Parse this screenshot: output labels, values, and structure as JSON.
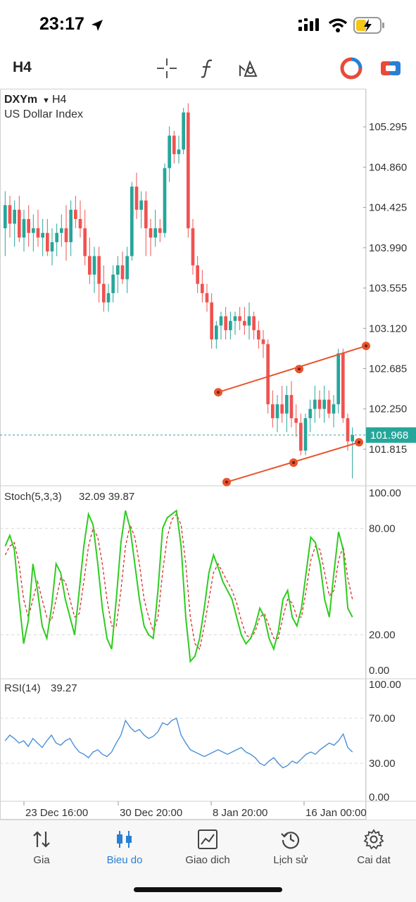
{
  "status_bar": {
    "time": "23:17"
  },
  "toolbar": {
    "timeframe": "H4"
  },
  "chart": {
    "symbol": "DXYm",
    "timeframe": "H4",
    "description": "US Dollar Index",
    "current_price": "101.968",
    "price_labels": [
      "105.295",
      "104.860",
      "104.425",
      "103.990",
      "103.555",
      "103.120",
      "102.685",
      "102.250",
      "101.815"
    ],
    "time_labels": [
      "23 Dec 16:00",
      "30 Dec 20:00",
      "8 Jan 20:00",
      "16 Jan 00:00"
    ],
    "colors": {
      "up": "#26a69a",
      "down": "#ef5350",
      "price_line": "#26a69a",
      "trendline": "#e8532d",
      "stoch_k": "#2ecc1f",
      "stoch_d": "#d9302c",
      "rsi": "#4a90d9"
    }
  },
  "chart_data": {
    "type": "candlestick",
    "ylim": [
      101.45,
      105.6
    ],
    "candles": [
      {
        "o": 104.2,
        "h": 104.6,
        "l": 103.9,
        "c": 104.45
      },
      {
        "o": 104.45,
        "h": 104.55,
        "l": 104.1,
        "c": 104.25
      },
      {
        "o": 104.25,
        "h": 104.5,
        "l": 104.0,
        "c": 104.4
      },
      {
        "o": 104.4,
        "h": 104.55,
        "l": 104.05,
        "c": 104.1
      },
      {
        "o": 104.1,
        "h": 104.4,
        "l": 103.95,
        "c": 104.3
      },
      {
        "o": 104.3,
        "h": 104.45,
        "l": 104.0,
        "c": 104.15
      },
      {
        "o": 104.15,
        "h": 104.35,
        "l": 103.95,
        "c": 104.2
      },
      {
        "o": 104.2,
        "h": 104.4,
        "l": 104.0,
        "c": 104.1
      },
      {
        "o": 104.1,
        "h": 104.3,
        "l": 103.9,
        "c": 104.15
      },
      {
        "o": 104.15,
        "h": 104.3,
        "l": 103.9,
        "c": 103.95
      },
      {
        "o": 103.95,
        "h": 104.2,
        "l": 103.8,
        "c": 104.05
      },
      {
        "o": 104.05,
        "h": 104.25,
        "l": 103.9,
        "c": 104.15
      },
      {
        "o": 104.15,
        "h": 104.35,
        "l": 104.0,
        "c": 104.2
      },
      {
        "o": 104.2,
        "h": 104.45,
        "l": 103.85,
        "c": 104.05
      },
      {
        "o": 104.05,
        "h": 104.5,
        "l": 103.9,
        "c": 104.4
      },
      {
        "o": 104.4,
        "h": 104.55,
        "l": 104.2,
        "c": 104.3
      },
      {
        "o": 104.3,
        "h": 104.5,
        "l": 104.1,
        "c": 104.2
      },
      {
        "o": 104.2,
        "h": 104.4,
        "l": 103.8,
        "c": 103.9
      },
      {
        "o": 103.9,
        "h": 104.1,
        "l": 103.6,
        "c": 103.7
      },
      {
        "o": 103.7,
        "h": 104.0,
        "l": 103.5,
        "c": 103.9
      },
      {
        "o": 103.9,
        "h": 104.0,
        "l": 103.4,
        "c": 103.6
      },
      {
        "o": 103.6,
        "h": 103.8,
        "l": 103.3,
        "c": 103.4
      },
      {
        "o": 103.4,
        "h": 103.6,
        "l": 103.3,
        "c": 103.5
      },
      {
        "o": 103.5,
        "h": 103.8,
        "l": 103.4,
        "c": 103.7
      },
      {
        "o": 103.7,
        "h": 103.9,
        "l": 103.5,
        "c": 103.8
      },
      {
        "o": 103.8,
        "h": 103.95,
        "l": 103.6,
        "c": 103.65
      },
      {
        "o": 103.65,
        "h": 104.0,
        "l": 103.5,
        "c": 103.9
      },
      {
        "o": 103.9,
        "h": 104.7,
        "l": 103.85,
        "c": 104.65
      },
      {
        "o": 104.65,
        "h": 104.8,
        "l": 104.3,
        "c": 104.4
      },
      {
        "o": 104.4,
        "h": 104.6,
        "l": 104.2,
        "c": 104.5
      },
      {
        "o": 104.5,
        "h": 104.6,
        "l": 103.9,
        "c": 104.2
      },
      {
        "o": 104.2,
        "h": 104.3,
        "l": 103.9,
        "c": 104.1
      },
      {
        "o": 104.1,
        "h": 104.4,
        "l": 104.0,
        "c": 104.2
      },
      {
        "o": 104.2,
        "h": 104.3,
        "l": 104.05,
        "c": 104.15
      },
      {
        "o": 104.15,
        "h": 104.9,
        "l": 104.1,
        "c": 104.85
      },
      {
        "o": 104.85,
        "h": 105.3,
        "l": 104.7,
        "c": 105.2
      },
      {
        "o": 105.2,
        "h": 105.25,
        "l": 104.9,
        "c": 105.0
      },
      {
        "o": 105.0,
        "h": 105.2,
        "l": 104.9,
        "c": 105.05
      },
      {
        "o": 105.05,
        "h": 105.5,
        "l": 105.0,
        "c": 105.45
      },
      {
        "o": 105.45,
        "h": 105.55,
        "l": 104.1,
        "c": 104.2
      },
      {
        "o": 104.2,
        "h": 104.3,
        "l": 103.7,
        "c": 103.8
      },
      {
        "o": 103.8,
        "h": 103.9,
        "l": 103.5,
        "c": 103.6
      },
      {
        "o": 103.6,
        "h": 103.75,
        "l": 103.4,
        "c": 103.5
      },
      {
        "o": 103.5,
        "h": 103.6,
        "l": 103.3,
        "c": 103.4
      },
      {
        "o": 103.4,
        "h": 103.5,
        "l": 102.9,
        "c": 103.0
      },
      {
        "o": 103.0,
        "h": 103.2,
        "l": 102.9,
        "c": 103.15
      },
      {
        "o": 103.15,
        "h": 103.3,
        "l": 103.0,
        "c": 103.25
      },
      {
        "o": 103.25,
        "h": 103.35,
        "l": 103.0,
        "c": 103.1
      },
      {
        "o": 103.1,
        "h": 103.3,
        "l": 103.0,
        "c": 103.2
      },
      {
        "o": 103.2,
        "h": 103.3,
        "l": 103.05,
        "c": 103.25
      },
      {
        "o": 103.25,
        "h": 103.35,
        "l": 103.1,
        "c": 103.2
      },
      {
        "o": 103.2,
        "h": 103.35,
        "l": 103.05,
        "c": 103.15
      },
      {
        "o": 103.15,
        "h": 103.4,
        "l": 103.0,
        "c": 103.25
      },
      {
        "o": 103.25,
        "h": 103.3,
        "l": 103.0,
        "c": 103.1
      },
      {
        "o": 103.1,
        "h": 103.2,
        "l": 102.9,
        "c": 103.0
      },
      {
        "o": 103.0,
        "h": 103.1,
        "l": 102.8,
        "c": 102.95
      },
      {
        "o": 102.95,
        "h": 103.0,
        "l": 102.2,
        "c": 102.3
      },
      {
        "o": 102.3,
        "h": 102.45,
        "l": 102.05,
        "c": 102.15
      },
      {
        "o": 102.15,
        "h": 102.4,
        "l": 102.0,
        "c": 102.3
      },
      {
        "o": 102.3,
        "h": 102.5,
        "l": 102.1,
        "c": 102.2
      },
      {
        "o": 102.2,
        "h": 102.5,
        "l": 102.0,
        "c": 102.4
      },
      {
        "o": 102.4,
        "h": 102.55,
        "l": 102.05,
        "c": 102.15
      },
      {
        "o": 102.15,
        "h": 102.3,
        "l": 101.95,
        "c": 102.1
      },
      {
        "o": 102.1,
        "h": 102.2,
        "l": 101.75,
        "c": 101.8
      },
      {
        "o": 101.8,
        "h": 102.2,
        "l": 101.75,
        "c": 102.15
      },
      {
        "o": 102.15,
        "h": 102.35,
        "l": 102.0,
        "c": 102.25
      },
      {
        "o": 102.25,
        "h": 102.5,
        "l": 102.1,
        "c": 102.35
      },
      {
        "o": 102.35,
        "h": 102.45,
        "l": 102.15,
        "c": 102.25
      },
      {
        "o": 102.25,
        "h": 102.5,
        "l": 102.1,
        "c": 102.35
      },
      {
        "o": 102.35,
        "h": 102.45,
        "l": 102.15,
        "c": 102.2
      },
      {
        "o": 102.2,
        "h": 102.4,
        "l": 102.05,
        "c": 102.3
      },
      {
        "o": 102.3,
        "h": 102.9,
        "l": 102.2,
        "c": 102.85
      },
      {
        "o": 102.85,
        "h": 102.9,
        "l": 102.1,
        "c": 102.15
      },
      {
        "o": 102.15,
        "h": 102.2,
        "l": 101.8,
        "c": 101.9
      },
      {
        "o": 101.9,
        "h": 102.05,
        "l": 101.5,
        "c": 101.97
      }
    ],
    "indicators": [
      {
        "name": "Stoch(5,3,3)",
        "values_text": "32.09 39.87",
        "ylim": [
          0,
          100
        ],
        "levels": [
          "100.00",
          "80.00",
          "20.00",
          "0.00"
        ],
        "k": [
          70,
          76,
          68,
          40,
          15,
          28,
          60,
          45,
          25,
          18,
          35,
          60,
          55,
          40,
          30,
          20,
          45,
          70,
          88,
          82,
          60,
          35,
          18,
          12,
          40,
          72,
          90,
          80,
          60,
          40,
          25,
          20,
          18,
          45,
          80,
          86,
          88,
          90,
          70,
          30,
          5,
          8,
          18,
          35,
          55,
          65,
          58,
          50,
          45,
          40,
          30,
          20,
          15,
          18,
          25,
          35,
          30,
          18,
          12,
          22,
          40,
          45,
          30,
          25,
          35,
          55,
          75,
          72,
          60,
          40,
          30,
          55,
          78,
          68,
          35,
          30
        ],
        "d": [
          65,
          70,
          72,
          60,
          40,
          30,
          40,
          50,
          40,
          30,
          28,
          40,
          52,
          50,
          40,
          30,
          32,
          50,
          70,
          80,
          75,
          60,
          40,
          25,
          25,
          45,
          70,
          82,
          75,
          60,
          40,
          30,
          22,
          30,
          55,
          75,
          85,
          88,
          82,
          60,
          30,
          15,
          12,
          25,
          40,
          55,
          60,
          55,
          50,
          45,
          38,
          28,
          20,
          18,
          22,
          30,
          32,
          25,
          18,
          18,
          30,
          40,
          38,
          30,
          30,
          45,
          62,
          70,
          68,
          55,
          42,
          45,
          62,
          70,
          52,
          40
        ]
      },
      {
        "name": "RSI(14)",
        "values_text": "39.27",
        "ylim": [
          0,
          100
        ],
        "levels": [
          "100.00",
          "70.00",
          "30.00",
          "0.00"
        ],
        "v": [
          50,
          55,
          52,
          48,
          50,
          45,
          52,
          48,
          44,
          50,
          55,
          48,
          46,
          50,
          52,
          45,
          40,
          38,
          35,
          40,
          42,
          38,
          36,
          40,
          48,
          55,
          68,
          62,
          58,
          60,
          55,
          52,
          54,
          58,
          66,
          64,
          68,
          70,
          55,
          48,
          42,
          40,
          38,
          36,
          38,
          40,
          42,
          40,
          38,
          40,
          42,
          44,
          40,
          38,
          35,
          30,
          28,
          32,
          35,
          30,
          26,
          28,
          32,
          30,
          34,
          38,
          40,
          38,
          42,
          45,
          48,
          46,
          50,
          56,
          44,
          40
        ]
      }
    ]
  },
  "tabs": [
    {
      "label": "Gia",
      "icon": "arrows-updown-icon",
      "active": false
    },
    {
      "label": "Bieu do",
      "icon": "candles-icon",
      "active": true
    },
    {
      "label": "Giao dich",
      "icon": "trade-chart-icon",
      "active": false
    },
    {
      "label": "Lịch sử",
      "icon": "history-icon",
      "active": false
    },
    {
      "label": "Cai dat",
      "icon": "gear-icon",
      "active": false
    }
  ]
}
